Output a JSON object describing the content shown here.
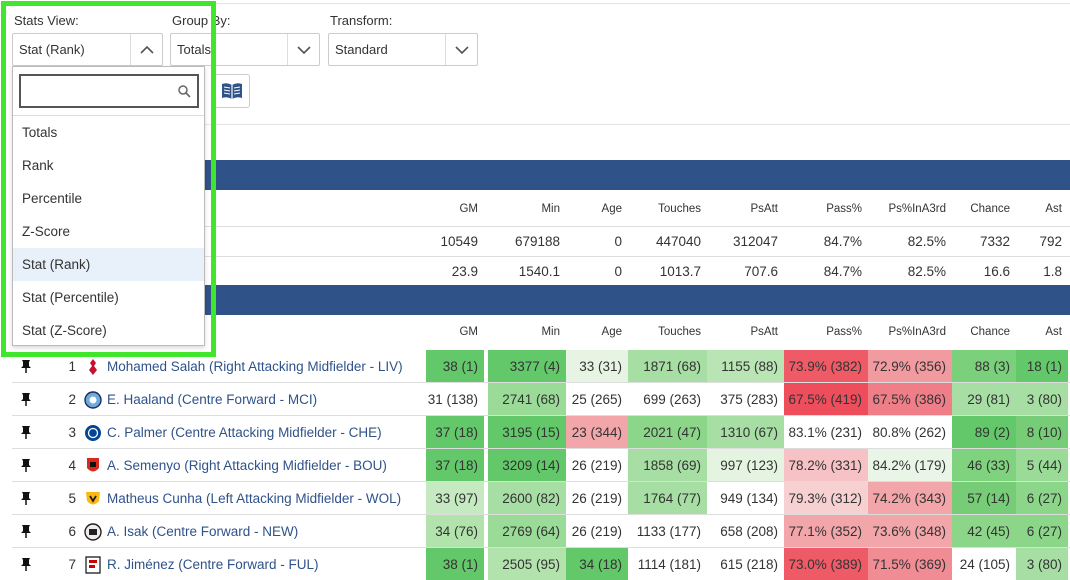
{
  "controls": {
    "stats_view_label": "Stats View:",
    "stats_view_value": "Stat (Rank)",
    "group_by_label": "Group By:",
    "group_by_value": "Totals",
    "transform_label": "Transform:",
    "transform_value": "Standard"
  },
  "dropdown": {
    "search_value": "",
    "options": [
      "Totals",
      "Rank",
      "Percentile",
      "Z-Score",
      "Stat (Rank)",
      "Stat (Percentile)",
      "Stat (Z-Score)"
    ],
    "selected": "Stat (Rank)"
  },
  "columns": [
    "GM",
    "Min",
    "Age",
    "Touches",
    "PsAtt",
    "Pass%",
    "Ps%InA3rd",
    "Chance",
    "Ast"
  ],
  "summary": [
    [
      "10549",
      "679188",
      "0",
      "447040",
      "312047",
      "84.7%",
      "82.5%",
      "7332",
      "792"
    ],
    [
      "23.9",
      "1540.1",
      "0",
      "1013.7",
      "707.6",
      "84.7%",
      "82.5%",
      "16.6",
      "1.8"
    ]
  ],
  "players": [
    {
      "rank": "1",
      "name": "Mohamed Salah (Right Attacking Midfielder - LIV)",
      "club_icon": "liverpool-crest",
      "values": [
        "38 (1)",
        "3377 (4)",
        "33 (31)",
        "1871 (68)",
        "1155 (88)",
        "73.9% (382)",
        "72.9% (356)",
        "88 (3)",
        "18 (1)"
      ],
      "colors": [
        "#63c86a",
        "#63c86a",
        "#e7f4e4",
        "#a6dea3",
        "#b9e4b3",
        "#ee5a66",
        "#f19aa0",
        "#7bd07c",
        "#63c86a"
      ]
    },
    {
      "rank": "2",
      "name": "E. Haaland (Centre Forward - MCI)",
      "club_icon": "man-city-crest",
      "values": [
        "31 (138)",
        "2741 (68)",
        "25 (265)",
        "699 (263)",
        "375 (283)",
        "67.5% (419)",
        "67.5% (386)",
        "29 (81)",
        "3 (80)"
      ],
      "colors": [
        "#ffffff",
        "#9adb97",
        "#ffffff",
        "#ffffff",
        "#ffffff",
        "#ee4e5c",
        "#f07e88",
        "#a6dea3",
        "#a6dea3"
      ]
    },
    {
      "rank": "3",
      "name": "C. Palmer (Centre Attacking Midfielder - CHE)",
      "club_icon": "chelsea-crest",
      "values": [
        "37 (18)",
        "3195 (15)",
        "23 (344)",
        "2021 (47)",
        "1310 (67)",
        "83.1% (231)",
        "80.8% (262)",
        "89 (2)",
        "8 (10)"
      ],
      "colors": [
        "#63c86a",
        "#63c86a",
        "#f3a6aa",
        "#8cd68a",
        "#a6dea3",
        "#ffffff",
        "#ffffff",
        "#63c86a",
        "#76cc77"
      ]
    },
    {
      "rank": "4",
      "name": "A. Semenyo (Right Attacking Midfielder - BOU)",
      "club_icon": "bournemouth-crest",
      "values": [
        "37 (18)",
        "3209 (14)",
        "26 (219)",
        "1858 (69)",
        "997 (123)",
        "78.2% (331)",
        "84.2% (179)",
        "46 (33)",
        "5 (44)"
      ],
      "colors": [
        "#63c86a",
        "#63c86a",
        "#ffffff",
        "#a6dea3",
        "#e4f4e1",
        "#f6c2c5",
        "#e9f6e7",
        "#7fd27e",
        "#9adb97"
      ]
    },
    {
      "rank": "5",
      "name": "Matheus Cunha (Left Attacking Midfielder - WOL)",
      "club_icon": "wolves-crest",
      "values": [
        "33 (97)",
        "2600 (82)",
        "26 (219)",
        "1764 (77)",
        "949 (134)",
        "79.3% (312)",
        "74.2% (343)",
        "57 (14)",
        "6 (27)"
      ],
      "colors": [
        "#c5e9c0",
        "#a6dea3",
        "#ffffff",
        "#a6dea3",
        "#ffffff",
        "#f7d0d2",
        "#f3a6aa",
        "#76cc77",
        "#8cd68a"
      ]
    },
    {
      "rank": "6",
      "name": "A. Isak (Centre Forward - NEW)",
      "club_icon": "newcastle-crest",
      "values": [
        "34 (76)",
        "2769 (64)",
        "26 (219)",
        "1133 (177)",
        "658 (208)",
        "77.1% (352)",
        "73.6% (348)",
        "42 (45)",
        "6 (27)"
      ],
      "colors": [
        "#b3e3ad",
        "#9adb97",
        "#ffffff",
        "#ffffff",
        "#ffffff",
        "#f3a6aa",
        "#f3a6aa",
        "#8cd68a",
        "#8cd68a"
      ]
    },
    {
      "rank": "7",
      "name": "R. Jiménez (Centre Forward - FUL)",
      "club_icon": "fulham-crest",
      "values": [
        "38 (1)",
        "2505 (95)",
        "34 (18)",
        "1114 (181)",
        "615 (218)",
        "73.0% (389)",
        "71.5% (369)",
        "24 (105)",
        "3 (80)"
      ],
      "colors": [
        "#63c86a",
        "#b3e3ad",
        "#63c86a",
        "#ffffff",
        "#ffffff",
        "#ee5a66",
        "#f08c94",
        "#ffffff",
        "#a6dea3"
      ]
    }
  ]
}
